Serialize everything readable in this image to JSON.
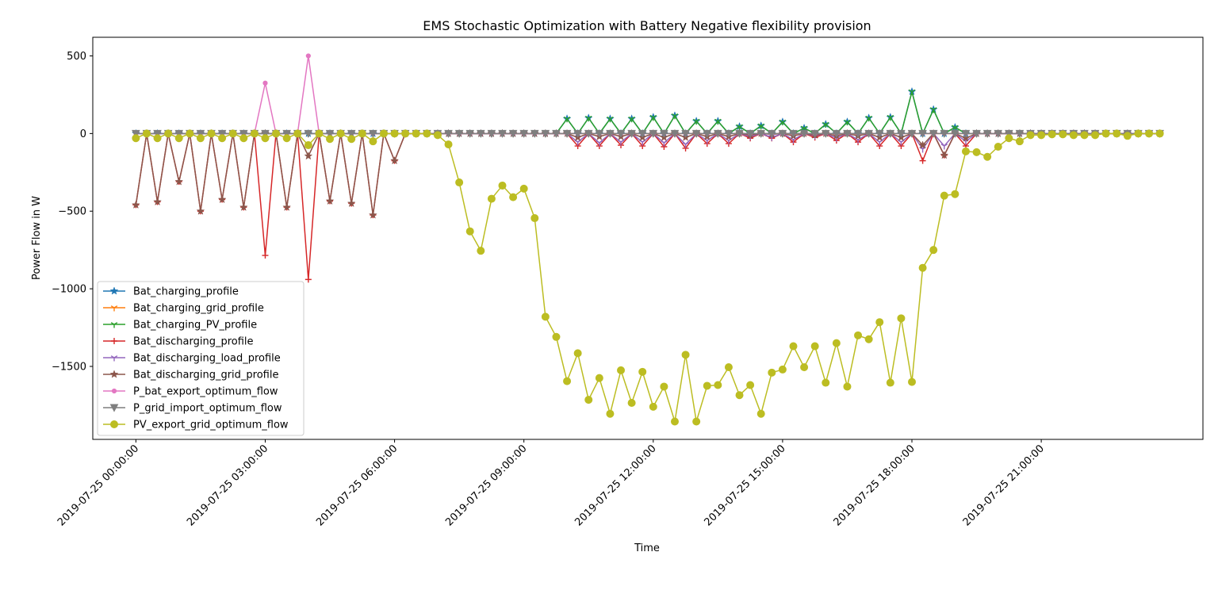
{
  "chart_data": {
    "type": "line",
    "title": "EMS Stochastic Optimization with Battery Negative flexibility provision",
    "xlabel": "Time",
    "ylabel": "Power Flow in W",
    "xlim": [
      "2019-07-24 23:00",
      "2019-07-26 00:45"
    ],
    "ylim": [
      -1970,
      620
    ],
    "yticks": [
      500,
      0,
      -500,
      -1000,
      -1500
    ],
    "ytick_labels": [
      "500",
      "0",
      "−500",
      "−1000",
      "−1500"
    ],
    "xticks": [
      "2019-07-25 00:00",
      "2019-07-25 03:00",
      "2019-07-25 06:00",
      "2019-07-25 09:00",
      "2019-07-25 12:00",
      "2019-07-25 15:00",
      "2019-07-25 18:00",
      "2019-07-25 21:00"
    ],
    "xtick_labels": [
      "2019-07-25 00:00:00",
      "2019-07-25 03:00:00",
      "2019-07-25 06:00:00",
      "2019-07-25 09:00:00",
      "2019-07-25 12:00:00",
      "2019-07-25 15:00:00",
      "2019-07-25 18:00:00",
      "2019-07-25 21:00:00"
    ],
    "x": [
      "2019-07-25 00:00",
      "2019-07-25 00:15",
      "2019-07-25 00:30",
      "2019-07-25 00:45",
      "2019-07-25 01:00",
      "2019-07-25 01:15",
      "2019-07-25 01:30",
      "2019-07-25 01:45",
      "2019-07-25 02:00",
      "2019-07-25 02:15",
      "2019-07-25 02:30",
      "2019-07-25 02:45",
      "2019-07-25 03:00",
      "2019-07-25 03:15",
      "2019-07-25 03:30",
      "2019-07-25 03:45",
      "2019-07-25 04:00",
      "2019-07-25 04:15",
      "2019-07-25 04:30",
      "2019-07-25 04:45",
      "2019-07-25 05:00",
      "2019-07-25 05:15",
      "2019-07-25 05:30",
      "2019-07-25 05:45",
      "2019-07-25 06:00",
      "2019-07-25 06:15",
      "2019-07-25 06:30",
      "2019-07-25 06:45",
      "2019-07-25 07:00",
      "2019-07-25 07:15",
      "2019-07-25 07:30",
      "2019-07-25 07:45",
      "2019-07-25 08:00",
      "2019-07-25 08:15",
      "2019-07-25 08:30",
      "2019-07-25 08:45",
      "2019-07-25 09:00",
      "2019-07-25 09:15",
      "2019-07-25 09:30",
      "2019-07-25 09:45",
      "2019-07-25 10:00",
      "2019-07-25 10:15",
      "2019-07-25 10:30",
      "2019-07-25 10:45",
      "2019-07-25 11:00",
      "2019-07-25 11:15",
      "2019-07-25 11:30",
      "2019-07-25 11:45",
      "2019-07-25 12:00",
      "2019-07-25 12:15",
      "2019-07-25 12:30",
      "2019-07-25 12:45",
      "2019-07-25 13:00",
      "2019-07-25 13:15",
      "2019-07-25 13:30",
      "2019-07-25 13:45",
      "2019-07-25 14:00",
      "2019-07-25 14:15",
      "2019-07-25 14:30",
      "2019-07-25 14:45",
      "2019-07-25 15:00",
      "2019-07-25 15:15",
      "2019-07-25 15:30",
      "2019-07-25 15:45",
      "2019-07-25 16:00",
      "2019-07-25 16:15",
      "2019-07-25 16:30",
      "2019-07-25 16:45",
      "2019-07-25 17:00",
      "2019-07-25 17:15",
      "2019-07-25 17:30",
      "2019-07-25 17:45",
      "2019-07-25 18:00",
      "2019-07-25 18:15",
      "2019-07-25 18:30",
      "2019-07-25 18:45",
      "2019-07-25 19:00",
      "2019-07-25 19:15",
      "2019-07-25 19:30",
      "2019-07-25 19:45",
      "2019-07-25 20:00",
      "2019-07-25 20:15",
      "2019-07-25 20:30",
      "2019-07-25 20:45",
      "2019-07-25 21:00",
      "2019-07-25 21:15",
      "2019-07-25 21:30",
      "2019-07-25 21:45",
      "2019-07-25 22:00",
      "2019-07-25 22:15",
      "2019-07-25 22:30",
      "2019-07-25 22:45",
      "2019-07-25 23:00",
      "2019-07-25 23:15",
      "2019-07-25 23:30",
      "2019-07-25 23:45"
    ],
    "series": [
      {
        "name": "Bat_charging_profile",
        "color": "#1f77b4",
        "marker": "star",
        "values": [
          0,
          0,
          0,
          0,
          0,
          0,
          0,
          0,
          0,
          0,
          0,
          0,
          0,
          0,
          0,
          0,
          0,
          0,
          0,
          0,
          0,
          0,
          0,
          0,
          0,
          0,
          0,
          0,
          0,
          0,
          0,
          0,
          0,
          0,
          0,
          0,
          0,
          0,
          0,
          0,
          95,
          0,
          100,
          0,
          95,
          0,
          95,
          0,
          105,
          0,
          115,
          0,
          80,
          0,
          80,
          0,
          45,
          0,
          50,
          0,
          75,
          0,
          35,
          0,
          60,
          0,
          75,
          0,
          100,
          0,
          105,
          0,
          270,
          0,
          155,
          0,
          40,
          0,
          0,
          0,
          0,
          0,
          0,
          0,
          0,
          0,
          0,
          0,
          0,
          0,
          0,
          0,
          0,
          0,
          0,
          0
        ]
      },
      {
        "name": "Bat_charging_grid_profile",
        "color": "#ff7f0e",
        "marker": "tri",
        "values": [
          0,
          0,
          0,
          0,
          0,
          0,
          0,
          0,
          0,
          0,
          0,
          0,
          0,
          0,
          0,
          0,
          0,
          0,
          0,
          0,
          0,
          0,
          0,
          0,
          0,
          0,
          0,
          0,
          0,
          0,
          0,
          0,
          0,
          0,
          0,
          0,
          0,
          0,
          0,
          0,
          0,
          0,
          0,
          0,
          0,
          0,
          0,
          0,
          0,
          0,
          0,
          0,
          0,
          0,
          0,
          0,
          0,
          0,
          0,
          0,
          0,
          0,
          0,
          0,
          0,
          0,
          0,
          0,
          0,
          0,
          0,
          0,
          0,
          0,
          0,
          0,
          0,
          0,
          0,
          0,
          0,
          0,
          0,
          0,
          0,
          0,
          0,
          0,
          0,
          0,
          0,
          0,
          0,
          0,
          0,
          0
        ]
      },
      {
        "name": "Bat_charging_PV_profile",
        "color": "#2ca02c",
        "marker": "tri",
        "values": [
          0,
          0,
          0,
          0,
          0,
          0,
          0,
          0,
          0,
          0,
          0,
          0,
          0,
          0,
          0,
          0,
          0,
          0,
          0,
          0,
          0,
          0,
          0,
          0,
          0,
          0,
          0,
          0,
          0,
          0,
          0,
          0,
          0,
          0,
          0,
          0,
          0,
          0,
          0,
          0,
          95,
          0,
          100,
          0,
          95,
          0,
          95,
          0,
          105,
          0,
          115,
          0,
          80,
          0,
          80,
          0,
          45,
          0,
          50,
          0,
          75,
          0,
          35,
          0,
          60,
          0,
          75,
          0,
          100,
          0,
          105,
          0,
          270,
          0,
          155,
          0,
          40,
          0,
          0,
          0,
          0,
          0,
          0,
          0,
          0,
          0,
          0,
          0,
          0,
          0,
          0,
          0,
          0,
          0,
          0,
          0
        ]
      },
      {
        "name": "Bat_discharging_profile",
        "color": "#d62728",
        "marker": "plus",
        "values": [
          -460,
          0,
          -440,
          0,
          -310,
          0,
          -500,
          0,
          -425,
          0,
          -475,
          0,
          -785,
          0,
          -475,
          0,
          -940,
          0,
          -435,
          0,
          -450,
          0,
          -525,
          0,
          -175,
          0,
          0,
          0,
          0,
          0,
          0,
          0,
          0,
          0,
          0,
          0,
          0,
          0,
          0,
          0,
          0,
          -80,
          0,
          -80,
          0,
          -75,
          0,
          -80,
          0,
          -85,
          0,
          -95,
          0,
          -65,
          0,
          -65,
          0,
          -30,
          0,
          -30,
          0,
          -55,
          0,
          -25,
          0,
          -45,
          0,
          -55,
          0,
          -80,
          0,
          -80,
          0,
          -175,
          0,
          -140,
          0,
          -80,
          0,
          0,
          0,
          0,
          0,
          0,
          0,
          0,
          0,
          0,
          0,
          0,
          0,
          0,
          0,
          0,
          0,
          0
        ]
      },
      {
        "name": "Bat_discharging_load_profile",
        "color": "#9467bd",
        "marker": "tri",
        "values": [
          0,
          0,
          0,
          0,
          0,
          0,
          0,
          0,
          0,
          0,
          0,
          0,
          0,
          0,
          0,
          0,
          0,
          0,
          0,
          0,
          0,
          0,
          0,
          0,
          0,
          0,
          0,
          0,
          0,
          0,
          0,
          0,
          0,
          0,
          0,
          0,
          0,
          0,
          0,
          0,
          0,
          -55,
          0,
          -60,
          0,
          -55,
          0,
          -55,
          0,
          -60,
          0,
          -70,
          0,
          -45,
          0,
          -45,
          0,
          -20,
          0,
          -25,
          0,
          -40,
          0,
          -15,
          0,
          -30,
          0,
          -40,
          0,
          -55,
          0,
          -55,
          0,
          -100,
          0,
          -80,
          0,
          -50,
          0,
          0,
          0,
          0,
          0,
          0,
          0,
          0,
          0,
          0,
          0,
          0,
          0,
          0,
          0,
          0,
          0,
          0
        ]
      },
      {
        "name": "Bat_discharging_grid_profile",
        "color": "#8c564b",
        "marker": "star",
        "values": [
          -460,
          0,
          -440,
          0,
          -310,
          0,
          -500,
          0,
          -425,
          0,
          -475,
          0,
          0,
          0,
          -475,
          0,
          -145,
          0,
          -435,
          0,
          -450,
          0,
          -525,
          0,
          -175,
          0,
          0,
          0,
          0,
          0,
          0,
          0,
          0,
          0,
          0,
          0,
          0,
          0,
          0,
          0,
          0,
          -25,
          0,
          -20,
          0,
          -20,
          0,
          -25,
          0,
          -25,
          0,
          -25,
          0,
          -20,
          0,
          -20,
          0,
          -10,
          0,
          -5,
          0,
          -15,
          0,
          -10,
          0,
          -15,
          0,
          -15,
          0,
          -25,
          0,
          -25,
          0,
          -75,
          0,
          -140,
          0,
          -30,
          0,
          0,
          0,
          0,
          0,
          0,
          0,
          0,
          0,
          0,
          0,
          0,
          0,
          0,
          0,
          0,
          0,
          0
        ]
      },
      {
        "name": "P_bat_export_optimum_flow",
        "color": "#e377c2",
        "marker": "dot",
        "values": [
          0,
          0,
          0,
          0,
          0,
          0,
          0,
          0,
          0,
          0,
          0,
          0,
          325,
          0,
          0,
          0,
          500,
          0,
          0,
          0,
          0,
          0,
          0,
          0,
          0,
          0,
          0,
          0,
          0,
          0,
          0,
          0,
          0,
          0,
          0,
          0,
          0,
          0,
          0,
          0,
          0,
          0,
          0,
          0,
          0,
          0,
          0,
          0,
          0,
          0,
          0,
          0,
          0,
          0,
          0,
          0,
          0,
          0,
          0,
          0,
          0,
          0,
          0,
          0,
          0,
          0,
          0,
          0,
          0,
          0,
          0,
          0,
          0,
          0,
          0,
          0,
          0,
          0,
          0,
          0,
          0,
          0,
          0,
          0,
          0,
          0,
          0,
          0,
          0,
          0,
          0,
          0,
          0,
          0,
          0,
          0
        ]
      },
      {
        "name": "P_grid_import_optimum_flow",
        "color": "#7f7f7f",
        "marker": "triangle-down",
        "values": [
          0,
          0,
          0,
          0,
          0,
          0,
          0,
          0,
          0,
          0,
          0,
          0,
          0,
          0,
          0,
          0,
          0,
          0,
          0,
          0,
          0,
          0,
          0,
          0,
          0,
          0,
          0,
          0,
          0,
          0,
          0,
          0,
          0,
          0,
          0,
          0,
          0,
          0,
          0,
          0,
          0,
          0,
          0,
          0,
          0,
          0,
          0,
          0,
          0,
          0,
          0,
          0,
          0,
          0,
          0,
          0,
          0,
          0,
          0,
          0,
          0,
          0,
          0,
          0,
          0,
          0,
          0,
          0,
          0,
          0,
          0,
          0,
          0,
          0,
          0,
          0,
          0,
          0,
          0,
          0,
          0,
          0,
          0,
          0,
          0,
          0,
          0,
          0,
          0,
          0,
          0,
          0,
          0,
          0,
          0,
          0
        ]
      },
      {
        "name": "PV_export_grid_optimum_flow",
        "color": "#bcbd22",
        "marker": "circle",
        "values": [
          -30,
          0,
          -30,
          0,
          -30,
          0,
          -30,
          0,
          -30,
          0,
          -30,
          0,
          -30,
          0,
          -30,
          0,
          -75,
          0,
          -35,
          0,
          -35,
          0,
          -50,
          0,
          0,
          0,
          0,
          0,
          -10,
          -70,
          -315,
          -630,
          -755,
          -420,
          -335,
          -410,
          -355,
          -545,
          -1180,
          -1310,
          -1595,
          -1415,
          -1715,
          -1575,
          -1805,
          -1525,
          -1735,
          -1535,
          -1760,
          -1630,
          -1855,
          -1425,
          -1855,
          -1625,
          -1620,
          -1505,
          -1685,
          -1620,
          -1805,
          -1540,
          -1520,
          -1370,
          -1505,
          -1370,
          -1605,
          -1350,
          -1630,
          -1300,
          -1325,
          -1215,
          -1605,
          -1190,
          -1600,
          -865,
          -750,
          -400,
          -390,
          -115,
          -120,
          -150,
          -85,
          -30,
          -50,
          -10,
          -10,
          -5,
          -5,
          -10,
          -10,
          -10,
          0,
          0,
          -15,
          0,
          0,
          0
        ]
      }
    ],
    "legend": "lower-left",
    "grid": false
  }
}
